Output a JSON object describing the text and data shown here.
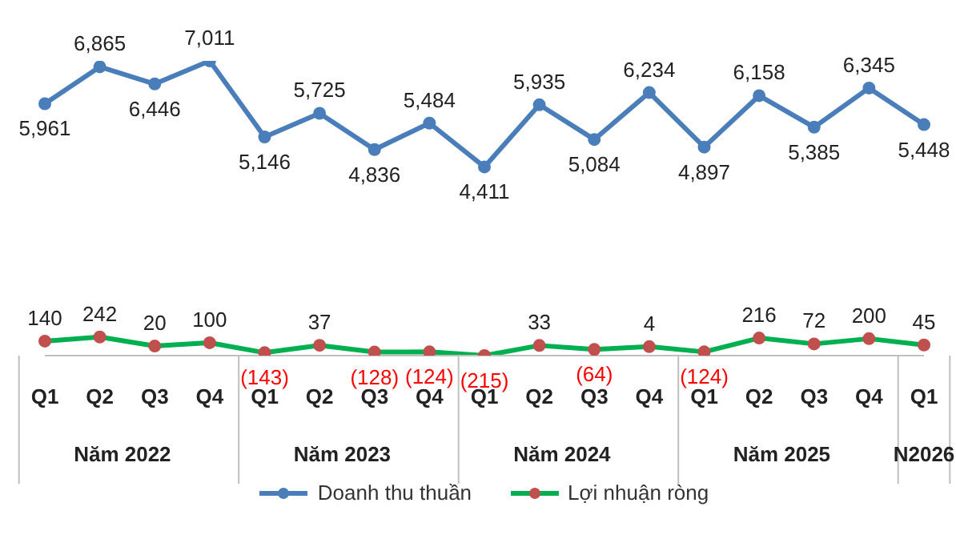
{
  "chart_data": {
    "type": "line",
    "categories": [
      "Q1",
      "Q2",
      "Q3",
      "Q4",
      "Q1",
      "Q2",
      "Q3",
      "Q4",
      "Q1",
      "Q2",
      "Q3",
      "Q4",
      "Q1",
      "Q2",
      "Q3",
      "Q4",
      "Q1"
    ],
    "series": [
      {
        "name": "Doanh thu thuần",
        "color": "#4a7ebb",
        "values": [
          5961,
          6865,
          6446,
          7011,
          5146,
          5725,
          4836,
          5484,
          4411,
          5935,
          5084,
          6234,
          4897,
          6158,
          5385,
          6345,
          5448
        ],
        "value_labels": [
          "5,961",
          "6,865",
          "6,446",
          "7,011",
          "5,146",
          "5,725",
          "4,836",
          "5,484",
          "4,411",
          "5,935",
          "5,084",
          "6,234",
          "4,897",
          "6,158",
          "5,385",
          "6,345",
          "5,448"
        ]
      },
      {
        "name": "Lợi nhuận ròng",
        "color": "#00b050",
        "colors": [
          "#c0504d",
          "#c0504d",
          "#c0504d",
          "#c0504d",
          "#c0504d",
          "#c0504d",
          "#c0504d",
          "#c0504d",
          "#c0504d",
          "#c0504d",
          "#c0504d",
          "#c0504d",
          "#c0504d",
          "#c0504d",
          "#c0504d",
          "#c0504d",
          "#c0504d"
        ],
        "values": [
          140,
          242,
          20,
          100,
          -143,
          37,
          -128,
          -124,
          -215,
          33,
          -64,
          4,
          -124,
          216,
          72,
          200,
          45
        ],
        "value_labels": [
          "140",
          "242",
          "20",
          "100",
          "(143)",
          "37",
          "(128)",
          "(124)",
          "(215)",
          "33",
          "(64)",
          "4",
          "(124)",
          "216",
          "72",
          "200",
          "45"
        ]
      }
    ],
    "tick_labels": "x",
    "annotations": [
      "Năm 2022",
      "Năm 2023",
      "Năm 2024",
      "Năm 2025",
      "N2026"
    ],
    "legend": "bottom",
    "grid": false,
    "marker": "circle",
    "line_style": "solid"
  }
}
